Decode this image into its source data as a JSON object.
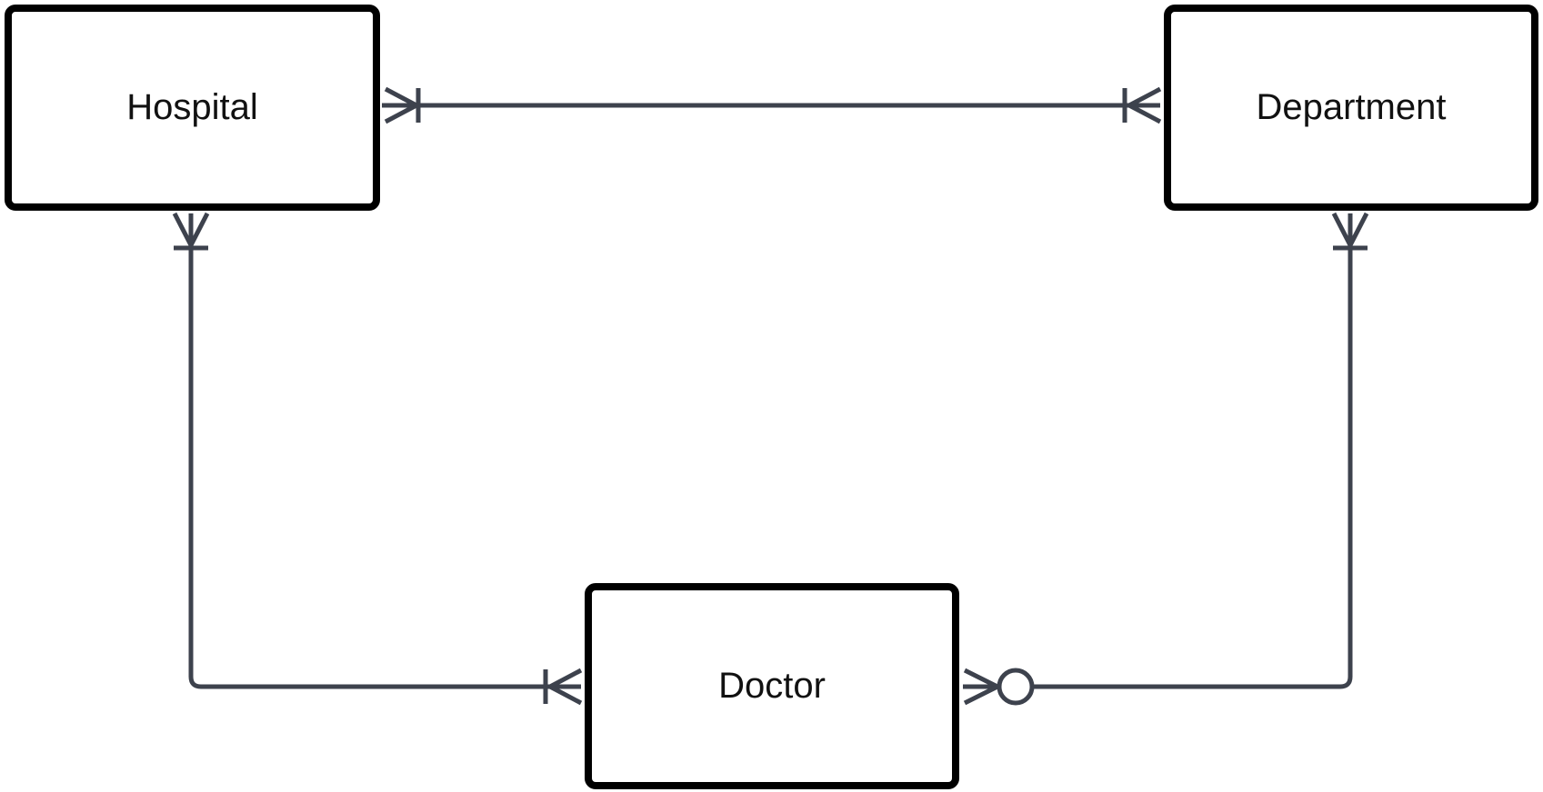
{
  "diagram": {
    "entities": {
      "hospital": {
        "label": "Hospital"
      },
      "department": {
        "label": "Department"
      },
      "doctor": {
        "label": "Doctor"
      }
    },
    "relationships": [
      {
        "from": "Hospital",
        "to": "Department",
        "from_cardinality": "one-or-many",
        "to_cardinality": "one-or-many"
      },
      {
        "from": "Hospital",
        "to": "Doctor",
        "from_cardinality": "one-or-many",
        "to_cardinality": "one-or-many"
      },
      {
        "from": "Department",
        "to": "Doctor",
        "from_cardinality": "one-or-many",
        "to_cardinality": "zero-or-many"
      }
    ],
    "colors": {
      "entity_border": "#000000",
      "connector": "#3d424d"
    }
  }
}
